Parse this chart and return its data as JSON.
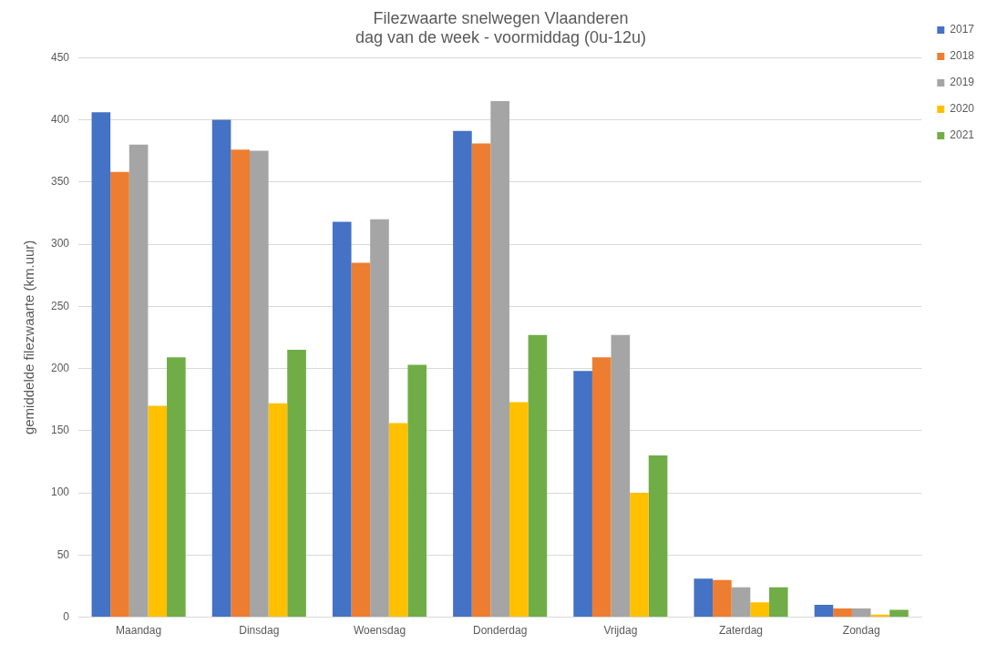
{
  "chart_data": {
    "type": "bar",
    "title": "Filezwaarte snelwegen Vlaanderen",
    "subtitle": "dag van de week - voormiddag (0u-12u)",
    "ylabel": "gemiddelde filezwaarte (km.uur)",
    "categories": [
      "Maandag",
      "Dinsdag",
      "Woensdag",
      "Donderdag",
      "Vrijdag",
      "Zaterdag",
      "Zondag"
    ],
    "series": [
      {
        "name": "2017",
        "color": "#4472c4",
        "values": [
          406,
          400,
          318,
          391,
          198,
          31,
          10
        ]
      },
      {
        "name": "2018",
        "color": "#ed7d31",
        "values": [
          358,
          376,
          285,
          381,
          209,
          30,
          7
        ]
      },
      {
        "name": "2019",
        "color": "#a5a5a5",
        "values": [
          380,
          375,
          320,
          415,
          227,
          24,
          7
        ]
      },
      {
        "name": "2020",
        "color": "#ffc000",
        "values": [
          170,
          172,
          156,
          173,
          100,
          12,
          2
        ]
      },
      {
        "name": "2021",
        "color": "#70ad47",
        "values": [
          209,
          215,
          203,
          227,
          130,
          24,
          6
        ]
      }
    ],
    "ylim": [
      0,
      450
    ],
    "yticks": [
      0,
      50,
      100,
      150,
      200,
      250,
      300,
      350,
      400,
      450
    ],
    "grid": "y",
    "legend": "top right"
  }
}
